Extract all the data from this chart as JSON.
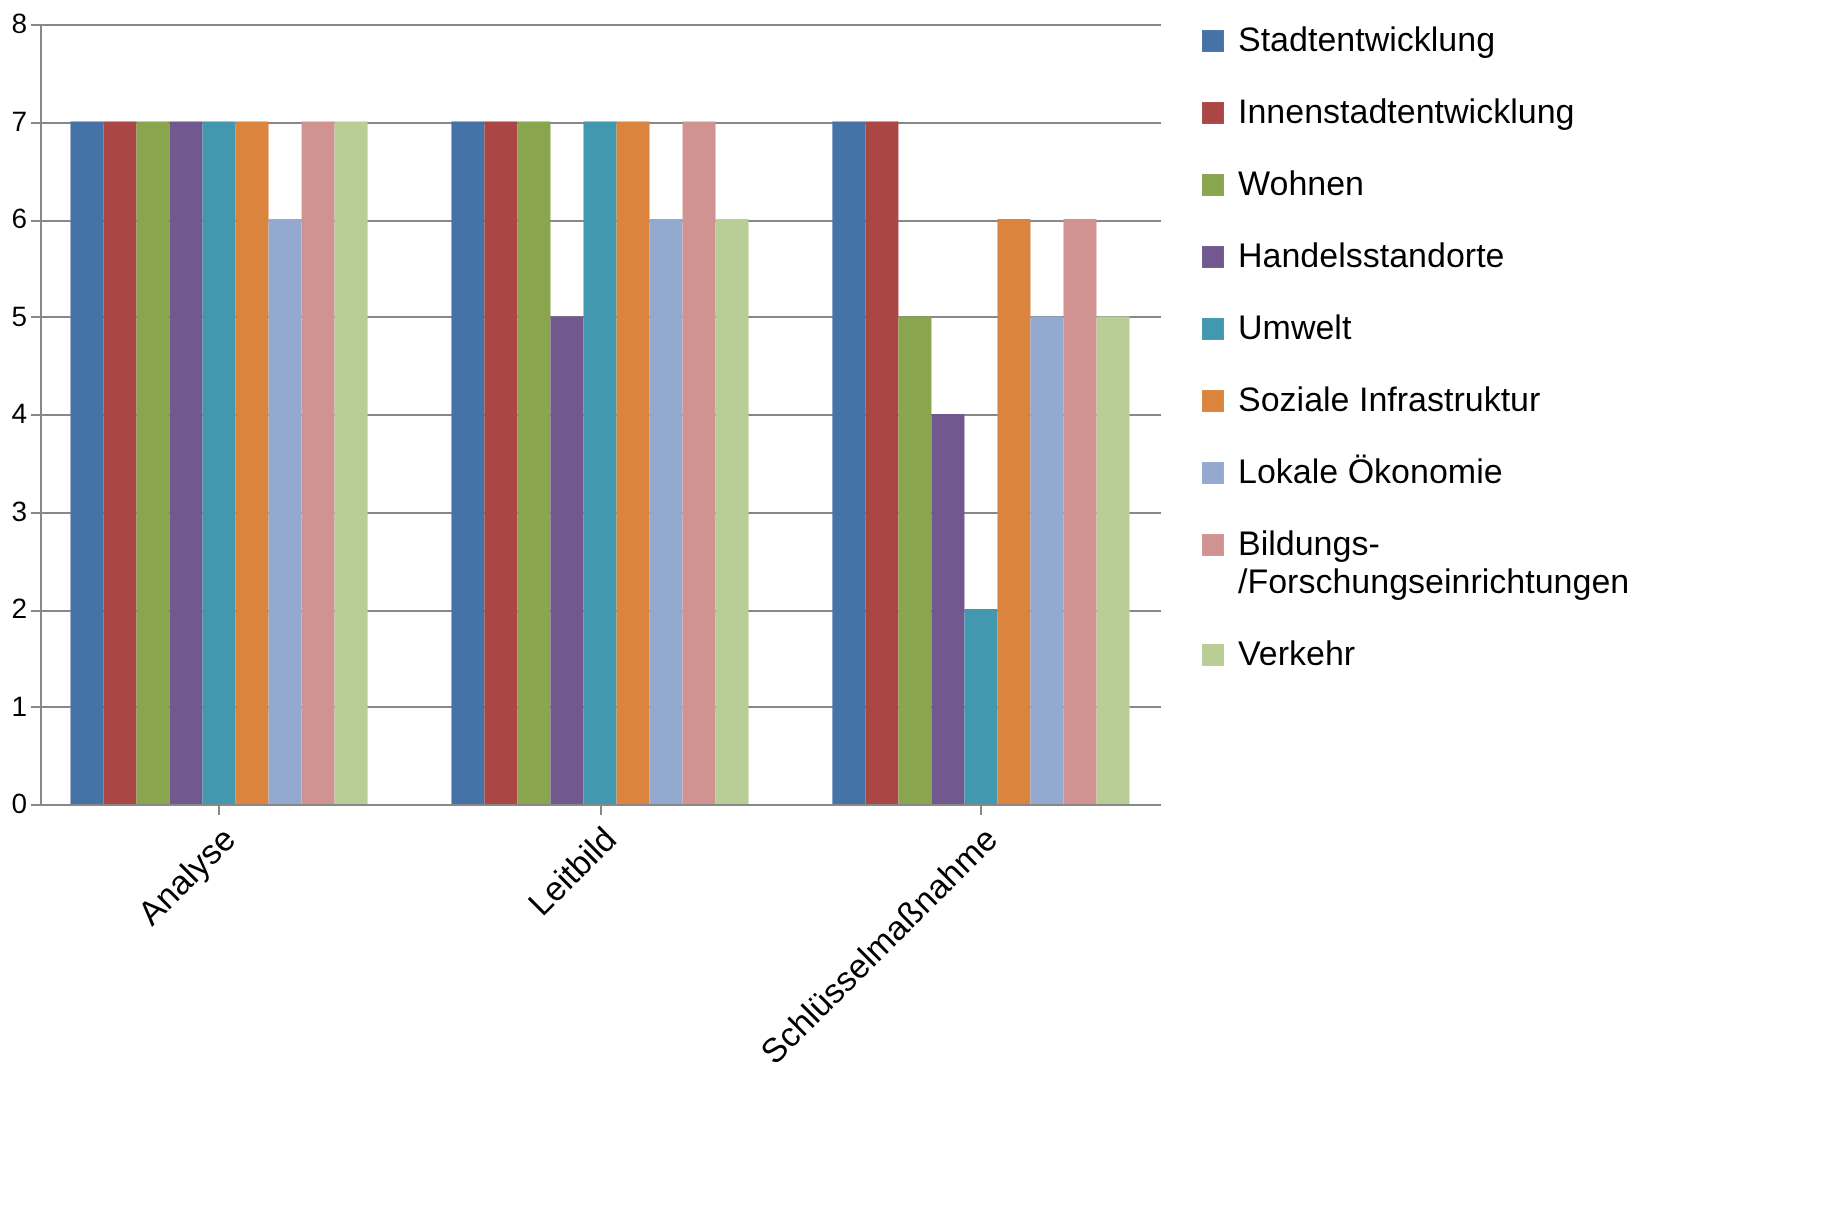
{
  "chart_data": {
    "type": "bar",
    "categories": [
      "Analyse",
      "Leitbild",
      "Schlüsselmaßnahme"
    ],
    "series": [
      {
        "name": "Stadtentwicklung",
        "color": "#4572a7",
        "values": [
          7,
          7,
          7
        ]
      },
      {
        "name": "Innenstadtentwicklung",
        "color": "#aa4643",
        "values": [
          7,
          7,
          7
        ]
      },
      {
        "name": "Wohnen",
        "color": "#89a54e",
        "values": [
          7,
          7,
          5
        ]
      },
      {
        "name": "Handelsstandorte",
        "color": "#71588f",
        "values": [
          7,
          5,
          4
        ]
      },
      {
        "name": "Umwelt",
        "color": "#4198af",
        "values": [
          7,
          7,
          2
        ]
      },
      {
        "name": "Soziale Infrastruktur",
        "color": "#db843d",
        "values": [
          7,
          7,
          6
        ]
      },
      {
        "name": "Lokale Ökonomie",
        "color": "#93a9cf",
        "values": [
          6,
          6,
          5
        ]
      },
      {
        "name": "Bildungs-\n/Forschungseinrichtungen",
        "color": "#d19392",
        "values": [
          7,
          7,
          6
        ]
      },
      {
        "name": "Verkehr",
        "color": "#b9cd96",
        "values": [
          7,
          6,
          5
        ]
      }
    ],
    "ylim": [
      0,
      8
    ],
    "yticks": [
      0,
      1,
      2,
      3,
      4,
      5,
      6,
      7,
      8
    ],
    "grid": "y",
    "legend": "right"
  }
}
